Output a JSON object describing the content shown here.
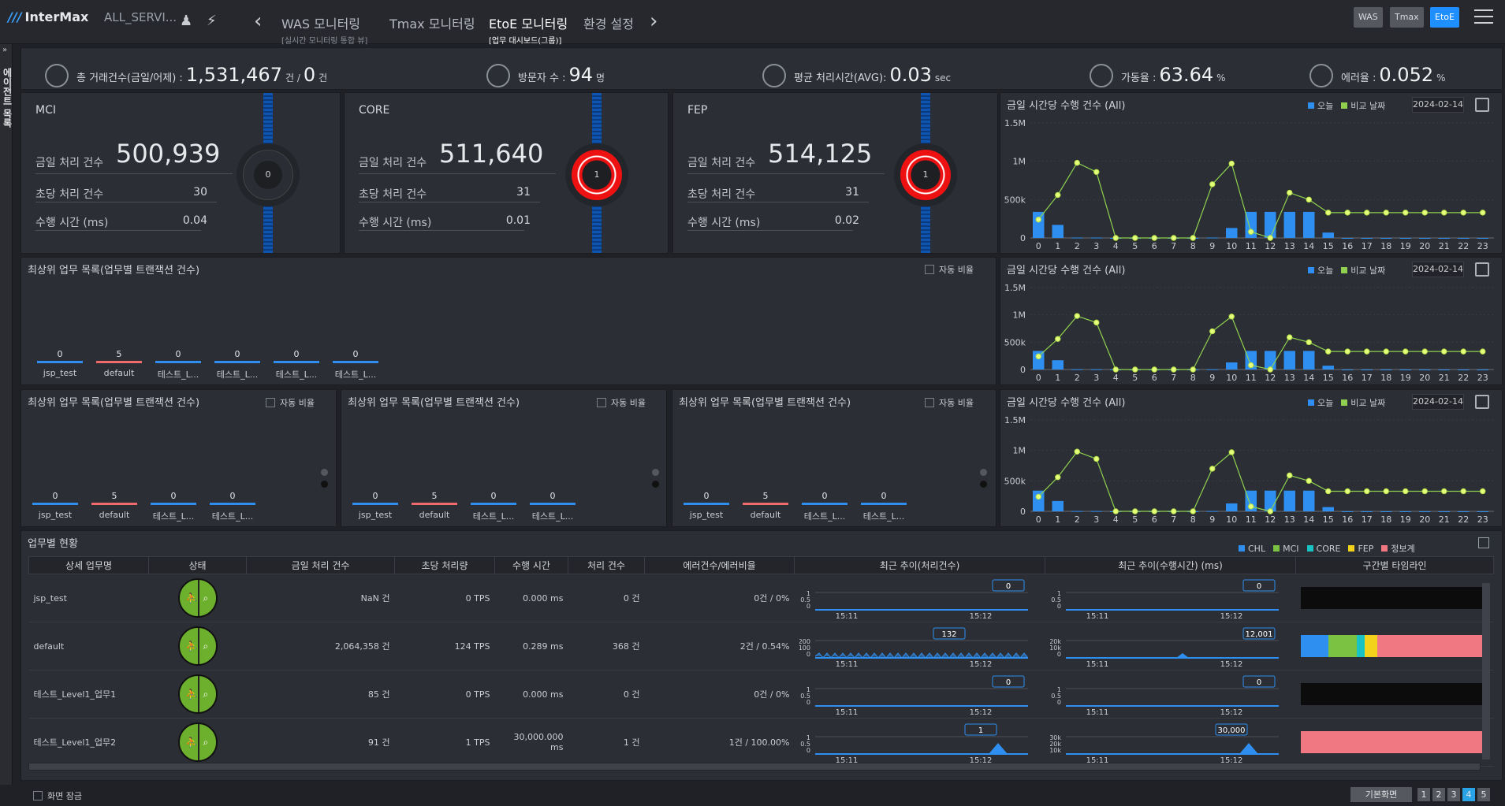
{
  "app": {
    "logo": "InterMax",
    "service": "ALL_SERVI..."
  },
  "nav": {
    "tabs": [
      {
        "label": "WAS 모니터링",
        "sub": "[실시간 모니터링 통합 뷰]"
      },
      {
        "label": "Tmax 모니터링",
        "sub": ""
      },
      {
        "label": "EtoE 모니터링",
        "sub": "[업무 대시보드(그룹)]"
      },
      {
        "label": "환경 설정",
        "sub": ""
      }
    ]
  },
  "modes": [
    "WAS",
    "Tmax",
    "EtoE"
  ],
  "sidebar": {
    "label": "에이전트 목록"
  },
  "summary": {
    "total_label": "총 거래건수(금일/어제) :",
    "total_value": "1,531,467",
    "total_unit1": "건 /",
    "total_value2": "0",
    "total_unit2": "건",
    "visitors_label": "방문자 수 :",
    "visitors_value": "94",
    "visitors_unit": "명",
    "avg_label": "평균 처리시간(AVG):",
    "avg_value": "0.03",
    "avg_unit": "sec",
    "avail_label": "가동율 :",
    "avail_value": "63.64",
    "avail_unit": "%",
    "err_label": "에러율 :",
    "err_value": "0.052",
    "err_unit": "%"
  },
  "kpis": [
    {
      "name": "MCI",
      "today_label": "금일 처리 건수",
      "today": "500,939",
      "tps_label": "초당 처리 건수",
      "tps": "30",
      "time_label": "수행 시간 (ms)",
      "time": "0.04",
      "gauge": "0",
      "alert": false
    },
    {
      "name": "CORE",
      "today_label": "금일 처리 건수",
      "today": "511,640",
      "tps_label": "초당 처리 건수",
      "tps": "31",
      "time_label": "수행 시간 (ms)",
      "time": "0.01",
      "gauge": "1",
      "alert": true
    },
    {
      "name": "FEP",
      "today_label": "금일 처리 건수",
      "today": "514,125",
      "tps_label": "초당 처리 건수",
      "tps": "31",
      "time_label": "수행 시간 (ms)",
      "time": "0.02",
      "gauge": "1",
      "alert": true
    }
  ],
  "hourly": {
    "title": "금일 시간당 수행 건수 (All)",
    "legend_today": "오늘",
    "legend_compare": "비교 날짜",
    "date": "2024-02-14",
    "colors": {
      "today": "#2f8ff0",
      "compare": "#8fd14f"
    }
  },
  "chart_data": [
    {
      "type": "bar",
      "title": "금일 시간당 수행 건수 (All)",
      "categories": [
        "0",
        "1",
        "2",
        "3",
        "4",
        "5",
        "6",
        "7",
        "8",
        "9",
        "10",
        "11",
        "12",
        "13",
        "14",
        "15",
        "16",
        "17",
        "18",
        "19",
        "20",
        "21",
        "22",
        "23"
      ],
      "yticks": [
        "0",
        "500k",
        "1M",
        "1.5M"
      ],
      "ylim": [
        0,
        1500000
      ],
      "series": [
        {
          "name": "오늘",
          "values": [
            340000,
            170000,
            5000,
            5000,
            0,
            0,
            0,
            0,
            0,
            5000,
            130000,
            340000,
            340000,
            340000,
            340000,
            70000,
            0,
            0,
            0,
            0,
            0,
            0,
            0,
            0
          ]
        },
        {
          "name": "비교 날짜",
          "values": [
            240000,
            560000,
            980000,
            860000,
            0,
            0,
            0,
            0,
            0,
            700000,
            970000,
            80000,
            0,
            590000,
            500000,
            330000,
            330000,
            330000,
            330000,
            330000,
            330000,
            330000,
            330000,
            330000
          ]
        }
      ]
    },
    {
      "type": "bar",
      "title": "금일 시간당 수행 건수 (All)",
      "categories": [
        "0",
        "1",
        "2",
        "3",
        "4",
        "5",
        "6",
        "7",
        "8",
        "9",
        "10",
        "11",
        "12",
        "13",
        "14",
        "15",
        "16",
        "17",
        "18",
        "19",
        "20",
        "21",
        "22",
        "23"
      ],
      "yticks": [
        "0",
        "500k",
        "1M",
        "1.5M"
      ],
      "ylim": [
        0,
        1500000
      ],
      "series": [
        {
          "name": "오늘",
          "values": [
            340000,
            170000,
            5000,
            5000,
            0,
            0,
            0,
            0,
            0,
            5000,
            130000,
            340000,
            340000,
            340000,
            340000,
            70000,
            0,
            0,
            0,
            0,
            0,
            0,
            0,
            0
          ]
        },
        {
          "name": "비교 날짜",
          "values": [
            240000,
            560000,
            980000,
            860000,
            0,
            0,
            0,
            0,
            0,
            700000,
            970000,
            80000,
            0,
            590000,
            500000,
            330000,
            330000,
            330000,
            330000,
            330000,
            330000,
            330000,
            330000,
            330000
          ]
        }
      ]
    },
    {
      "type": "bar",
      "title": "금일 시간당 수행 건수 (All)",
      "categories": [
        "0",
        "1",
        "2",
        "3",
        "4",
        "5",
        "6",
        "7",
        "8",
        "9",
        "10",
        "11",
        "12",
        "13",
        "14",
        "15",
        "16",
        "17",
        "18",
        "19",
        "20",
        "21",
        "22",
        "23"
      ],
      "yticks": [
        "0",
        "500k",
        "1M",
        "1.5M"
      ],
      "ylim": [
        0,
        1500000
      ],
      "series": [
        {
          "name": "오늘",
          "values": [
            340000,
            170000,
            5000,
            5000,
            0,
            0,
            0,
            0,
            0,
            5000,
            130000,
            340000,
            340000,
            340000,
            340000,
            70000,
            0,
            0,
            0,
            0,
            0,
            0,
            0,
            0
          ]
        },
        {
          "name": "비교 날짜",
          "values": [
            240000,
            560000,
            980000,
            860000,
            0,
            0,
            0,
            0,
            0,
            700000,
            970000,
            80000,
            0,
            590000,
            500000,
            330000,
            330000,
            330000,
            330000,
            330000,
            330000,
            330000,
            330000,
            330000
          ]
        }
      ]
    }
  ],
  "top_tasks": {
    "title": "최상위 업무 목록(업무별 트랜잭션 건수)",
    "auto_ratio": "자동 비율",
    "wide_items": [
      {
        "n": "0",
        "label": "jsp_test"
      },
      {
        "n": "5",
        "label": "default"
      },
      {
        "n": "0",
        "label": "테스트_L..."
      },
      {
        "n": "0",
        "label": "테스트_L..."
      },
      {
        "n": "0",
        "label": "테스트_L..."
      },
      {
        "n": "0",
        "label": "테스트_L..."
      }
    ],
    "small_items": [
      {
        "n": "0",
        "label": "jsp_test"
      },
      {
        "n": "5",
        "label": "default"
      },
      {
        "n": "0",
        "label": "테스트_L..."
      },
      {
        "n": "0",
        "label": "테스트_L..."
      }
    ]
  },
  "status_table": {
    "title": "업무별 현황",
    "legend": [
      {
        "name": "CHL",
        "color": "#2f8ff0"
      },
      {
        "name": "MCI",
        "color": "#7cc242"
      },
      {
        "name": "CORE",
        "color": "#19c3c3"
      },
      {
        "name": "FEP",
        "color": "#f2d21b"
      },
      {
        "name": "정보계",
        "color": "#f07882"
      }
    ],
    "headers": [
      "상세 업무명",
      "상태",
      "금일 처리 건수",
      "초당 처리량",
      "수행 시간",
      "처리 건수",
      "에러건수/에러비율",
      "최근 추이(처리건수)",
      "최근 추이(수행시간) (ms)",
      "구간별 타임라인"
    ],
    "rows": [
      {
        "name": "jsp_test",
        "today": "NaN 건",
        "tps": "0 TPS",
        "time": "0.000 ms",
        "count": "0 건",
        "err": "0건 / 0%",
        "t1_val": "0",
        "t1_y": [
          "1",
          "0.5",
          "0"
        ],
        "t2_val": "0",
        "t2_y": [
          "1",
          "0.5",
          "0"
        ]
      },
      {
        "name": "default",
        "today": "2,064,358 건",
        "tps": "124 TPS",
        "time": "0.289 ms",
        "count": "368 건",
        "err": "2건 / 0.54%",
        "t1_val": "132",
        "t1_y": [
          "200",
          "100",
          "0"
        ],
        "t2_val": "12,001",
        "t2_y": [
          "20k",
          "10k",
          "0"
        ]
      },
      {
        "name": "테스트_Level1_업무1",
        "today": "85 건",
        "tps": "0 TPS",
        "time": "0.000 ms",
        "count": "0 건",
        "err": "0건 / 0%",
        "t1_val": "0",
        "t1_y": [
          "1",
          "0.5",
          "0"
        ],
        "t2_val": "0",
        "t2_y": [
          "1",
          "0.5",
          "0"
        ]
      },
      {
        "name": "테스트_Level1_업무2",
        "today": "91 건",
        "tps": "1 TPS",
        "time": "30,000.000 ms",
        "count": "1 건",
        "err": "1건 / 100.00%",
        "t1_val": "1",
        "t1_y": [
          "1",
          "0.5",
          "0"
        ],
        "t2_val": "30,000",
        "t2_y": [
          "30k",
          "20k",
          "10k"
        ]
      }
    ],
    "time_start": "15:11",
    "time_end": "15:12"
  },
  "footer": {
    "lock": "화면 잠금",
    "default_btn": "기본화면",
    "pages": [
      "1",
      "2",
      "3",
      "4",
      "5"
    ],
    "active_page": "4"
  }
}
